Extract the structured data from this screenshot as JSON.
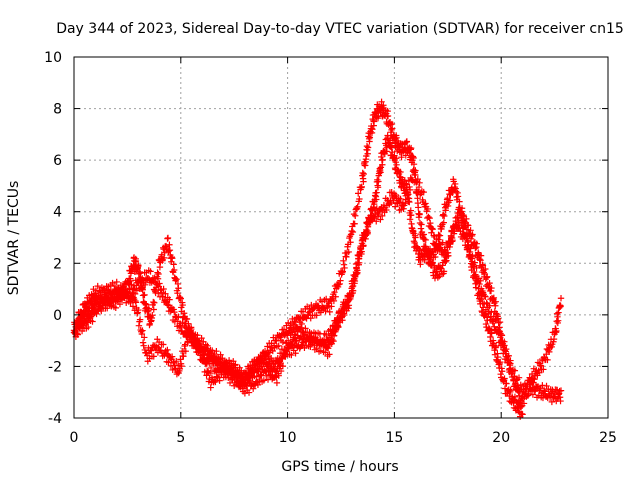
{
  "chart_data": {
    "type": "scatter",
    "title": "Day 344 of 2023, Sidereal Day-to-day VTEC variation (SDTVAR) for receiver cn15",
    "xlabel": "GPS time / hours",
    "ylabel": "SDTVAR / TECUs",
    "xlim": [
      0,
      25
    ],
    "ylim": [
      -4,
      10
    ],
    "xticks": [
      "0",
      "5",
      "10",
      "15",
      "20",
      "25"
    ],
    "yticks": [
      "-4",
      "-2",
      "0",
      "2",
      "4",
      "6",
      "8",
      "10"
    ],
    "grid": true,
    "marker": "+",
    "series": [
      {
        "name": "SDTVAR",
        "color": "#ff0000",
        "tracks": [
          {
            "x": [
              0.0,
              0.3,
              0.6,
              1.0,
              1.5,
              2.0,
              2.5,
              3.0,
              3.5,
              4.0,
              4.5,
              5.0,
              5.5,
              6.0,
              6.5,
              7.0,
              7.5,
              8.0,
              8.5,
              9.0,
              9.5,
              10.0,
              10.5,
              11.0,
              11.5,
              12.0,
              12.5,
              13.0,
              13.5,
              13.8,
              14.1,
              14.4,
              14.7,
              15.0,
              15.3,
              15.6,
              15.9,
              16.2,
              16.6,
              17.0,
              17.4,
              17.8,
              18.2,
              18.6,
              19.0,
              19.4,
              19.8,
              20.2,
              20.6,
              21.0
            ],
            "y": [
              -0.6,
              0.0,
              0.4,
              0.8,
              0.9,
              1.0,
              0.7,
              1.2,
              1.5,
              1.0,
              0.3,
              -0.5,
              -0.9,
              -1.2,
              -1.6,
              -1.9,
              -2.2,
              -2.4,
              -2.0,
              -1.5,
              -1.0,
              -0.6,
              -0.2,
              0.1,
              0.3,
              0.4,
              1.5,
              3.2,
              5.2,
              6.8,
              7.8,
              8.0,
              7.6,
              6.8,
              6.4,
              6.5,
              6.0,
              3.5,
              2.2,
              2.6,
              4.2,
              5.1,
              3.6,
              2.0,
              0.6,
              -0.5,
              -1.6,
              -2.8,
              -3.4,
              -3.8
            ]
          },
          {
            "x": [
              0.2,
              0.6,
              1.0,
              1.5,
              2.0,
              2.5,
              2.8,
              3.0,
              3.3,
              3.6,
              4.0,
              4.4,
              4.8,
              5.2,
              5.6,
              6.0,
              6.5,
              7.0,
              7.5,
              8.0,
              8.5,
              9.0,
              9.5,
              10.0,
              10.5,
              11.0,
              11.5,
              12.0,
              12.3,
              12.6,
              12.9,
              13.2,
              13.5,
              13.8,
              14.1,
              14.4,
              14.7,
              15.0,
              15.3,
              15.6,
              15.9,
              16.2,
              16.5,
              16.9,
              17.3,
              17.7,
              18.1,
              18.5,
              18.9,
              19.3,
              19.7,
              20.1,
              20.5,
              21.0,
              21.5,
              22.0,
              22.5,
              22.8
            ],
            "y": [
              -0.4,
              -0.3,
              0.2,
              0.5,
              0.7,
              1.2,
              2.0,
              1.8,
              0.5,
              -0.3,
              2.0,
              2.8,
              1.2,
              -0.2,
              -1.0,
              -1.6,
              -1.8,
              -2.1,
              -2.5,
              -2.8,
              -2.6,
              -2.2,
              -2.4,
              -1.2,
              -0.6,
              -0.9,
              -1.2,
              -0.8,
              -0.3,
              0.2,
              0.6,
              1.6,
              2.8,
              3.6,
              4.5,
              6.0,
              6.8,
              6.0,
              5.2,
              4.8,
              3.0,
              2.2,
              2.5,
              1.6,
              1.8,
              3.1,
              4.0,
              3.2,
              2.4,
              1.4,
              0.4,
              -1.2,
              -2.2,
              -3.0,
              -2.4,
              -1.8,
              -0.8,
              0.6
            ]
          },
          {
            "x": [
              0.0,
              0.4,
              0.9,
              1.4,
              1.9,
              2.4,
              2.9,
              3.4,
              3.9,
              4.4,
              4.9,
              5.4,
              5.9,
              6.4,
              6.9,
              7.4,
              7.9,
              8.4,
              8.9,
              9.4,
              9.9,
              10.4,
              10.9,
              11.4,
              11.9,
              12.4,
              12.9,
              13.4,
              13.9,
              14.4,
              14.9,
              15.4,
              15.9,
              16.4,
              16.9,
              17.4,
              17.9,
              18.4,
              18.9,
              19.4,
              19.9,
              20.4,
              20.9,
              21.4,
              21.9,
              22.4,
              22.8
            ],
            "y": [
              -0.8,
              -0.2,
              0.3,
              0.6,
              0.5,
              0.9,
              0.4,
              -1.6,
              -1.2,
              -1.6,
              -2.2,
              -0.6,
              -1.4,
              -2.6,
              -2.2,
              -2.0,
              -2.6,
              -2.0,
              -1.7,
              -2.0,
              -1.4,
              -1.2,
              -1.0,
              -0.9,
              -1.4,
              -0.2,
              0.6,
              2.5,
              3.8,
              4.0,
              4.6,
              4.2,
              5.5,
              4.4,
              2.8,
              2.4,
              3.6,
              2.8,
              1.4,
              0.2,
              -0.8,
              -2.0,
              -3.4,
              -2.8,
              -3.0,
              -3.1,
              -3.1
            ]
          }
        ]
      }
    ]
  }
}
